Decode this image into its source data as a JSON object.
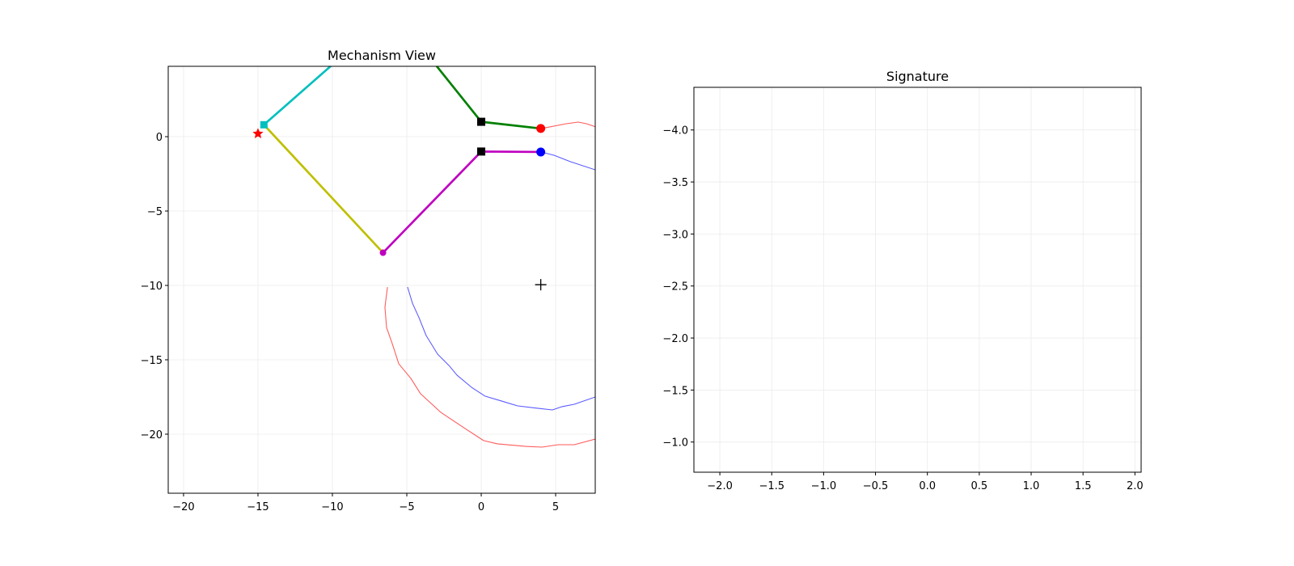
{
  "chart_data": [
    {
      "type": "line",
      "title": "Mechanism View",
      "xlim": [
        -21.03,
        7.66
      ],
      "ylim": [
        -23.97,
        4.73
      ],
      "xticks": [
        {
          "value": -20,
          "label": "−20"
        },
        {
          "value": -15,
          "label": "−15"
        },
        {
          "value": -10,
          "label": "−10"
        },
        {
          "value": -5,
          "label": "−5"
        },
        0,
        5
      ],
      "yticks": [
        0,
        {
          "value": -5,
          "label": "−5"
        },
        {
          "value": -10,
          "label": "−10"
        },
        {
          "value": -15,
          "label": "−15"
        },
        {
          "value": -20,
          "label": "−20"
        }
      ],
      "grid": true,
      "series": [
        {
          "color": "#ff5a5a",
          "linewidth": 0.8,
          "x": [
            -6.3,
            -6.47,
            -6.36,
            -5.98,
            -5.54,
            -4.73,
            -4.08,
            -2.72,
            -1.09,
            0.16,
            1.09,
            2.99,
            4.08,
            5.16,
            6.25,
            7.66,
            null,
            4.02,
            5.71,
            6.52,
            7.07,
            7.88
          ],
          "y": [
            -10.11,
            -11.47,
            -12.83,
            -13.91,
            -15.27,
            -16.25,
            -17.28,
            -18.53,
            -19.62,
            -20.43,
            -20.65,
            -20.82,
            -20.87,
            -20.71,
            -20.71,
            -20.33,
            null,
            0.54,
            0.87,
            0.98,
            0.87,
            0.6
          ]
        },
        {
          "color": "#5a5aff",
          "linewidth": 0.8,
          "x": [
            -4.95,
            -4.62,
            -4.18,
            -3.7,
            -2.93,
            -2.17,
            -1.63,
            -0.65,
            0.27,
            1.36,
            2.45,
            3.8,
            4.78,
            5.43,
            6.25,
            7.66,
            null,
            4.02,
            4.89,
            5.98,
            7.66
          ],
          "y": [
            -10.11,
            -11.2,
            -12.17,
            -13.37,
            -14.62,
            -15.38,
            -16.03,
            -16.85,
            -17.45,
            -17.77,
            -18.1,
            -18.26,
            -18.37,
            -18.15,
            -17.99,
            -17.5,
            null,
            -1.03,
            -1.25,
            -1.68,
            -2.23
          ]
        },
        {
          "color": "#00bfbf",
          "linewidth": 2,
          "x": [
            -14.6,
            -8.0
          ],
          "y": [
            0.8,
            6.6
          ]
        },
        {
          "color": "#008000",
          "linewidth": 2,
          "x": [
            -4.0,
            0,
            4
          ],
          "y": [
            6.0,
            1.0,
            0.55
          ]
        },
        {
          "color": "#bfbf00",
          "linewidth": 2,
          "x": [
            -14.6,
            -6.6
          ],
          "y": [
            0.8,
            -7.8
          ]
        },
        {
          "color": "#bf00bf",
          "linewidth": 2,
          "x": [
            -6.6,
            0,
            4
          ],
          "y": [
            -7.8,
            -1.0,
            -1.03
          ]
        },
        {
          "color": "#000000",
          "marker": "square",
          "markersize": 10,
          "x": [
            0,
            0
          ],
          "y": [
            1.0,
            -1.0
          ]
        },
        {
          "color": "#00bfbf",
          "marker": "square",
          "markersize": 9,
          "x": [
            -14.6
          ],
          "y": [
            0.8
          ]
        },
        {
          "color": "#ff0000",
          "marker": "circle",
          "markersize": 11,
          "x": [
            4
          ],
          "y": [
            0.55
          ]
        },
        {
          "color": "#0000ff",
          "marker": "circle",
          "markersize": 11,
          "x": [
            4
          ],
          "y": [
            -1.03
          ]
        },
        {
          "color": "#bf00bf",
          "marker": "circle",
          "markersize": 8,
          "x": [
            -6.6
          ],
          "y": [
            -7.8
          ]
        },
        {
          "color": "#ff0000",
          "marker": "star",
          "markersize": 14,
          "x": [
            -15
          ],
          "y": [
            0.2
          ]
        },
        {
          "color": "#000000",
          "marker": "plus",
          "markersize": 14,
          "x": [
            4
          ],
          "y": [
            -9.95
          ]
        }
      ]
    },
    {
      "type": "line",
      "title": "Signature",
      "xlim": [
        -2.25,
        2.06
      ],
      "ylim": [
        -0.71,
        -4.41
      ],
      "xticks": [
        {
          "value": -2,
          "label": "−2.0"
        },
        {
          "value": -1.5,
          "label": "−1.5"
        },
        {
          "value": -1,
          "label": "−1.0"
        },
        {
          "value": -0.5,
          "label": "−0.5"
        },
        {
          "value": 0,
          "label": "0.0"
        },
        0.5,
        {
          "value": 1,
          "label": "1.0"
        },
        1.5,
        {
          "value": 2,
          "label": "2.0"
        }
      ],
      "yticks": [
        {
          "value": -4,
          "label": "−4.0"
        },
        {
          "value": -3.5,
          "label": "−3.5"
        },
        {
          "value": -3,
          "label": "−3.0"
        },
        {
          "value": -2.5,
          "label": "−2.5"
        },
        {
          "value": -2,
          "label": "−2.0"
        },
        {
          "value": -1.5,
          "label": "−1.5"
        },
        {
          "value": -1,
          "label": "−1.0"
        }
      ],
      "grid": true,
      "series": []
    }
  ]
}
